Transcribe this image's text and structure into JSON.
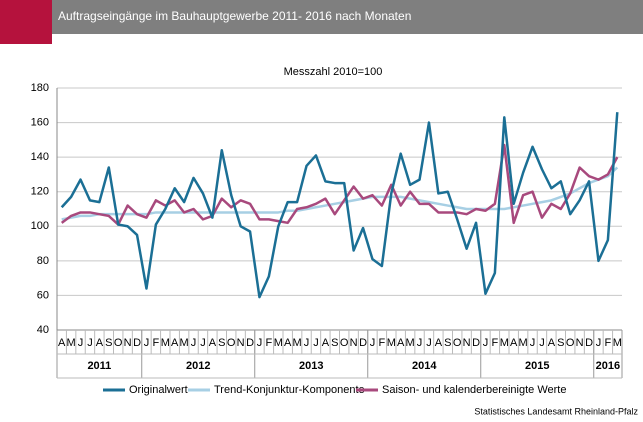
{
  "chart_data": {
    "type": "line",
    "title": "Auftragseingänge im Bauhauptgewerbe 2011- 2016 nach Monaten",
    "subtitle": "Messzahl 2010=100",
    "source": "Statistisches Landesamt Rheinland-Pfalz",
    "groups": [
      {
        "label": "2011",
        "categories": [
          "A",
          "M",
          "J",
          "J",
          "A",
          "S",
          "O",
          "N",
          "D"
        ]
      },
      {
        "label": "2012",
        "categories": [
          "J",
          "F",
          "M",
          "A",
          "M",
          "J",
          "J",
          "A",
          "S",
          "O",
          "N",
          "D"
        ]
      },
      {
        "label": "2013",
        "categories": [
          "J",
          "F",
          "M",
          "A",
          "M",
          "J",
          "J",
          "A",
          "S",
          "O",
          "N",
          "D"
        ]
      },
      {
        "label": "2014",
        "categories": [
          "J",
          "F",
          "M",
          "A",
          "M",
          "J",
          "J",
          "A",
          "S",
          "O",
          "N",
          "D"
        ]
      },
      {
        "label": "2015",
        "categories": [
          "J",
          "F",
          "M",
          "A",
          "M",
          "J",
          "J",
          "A",
          "S",
          "O",
          "N",
          "D"
        ]
      },
      {
        "label": "2016",
        "categories": [
          "J",
          "F",
          "M"
        ]
      }
    ],
    "series": [
      {
        "name": "Originalwert",
        "color": "#1b6f95",
        "values": [
          111,
          117,
          127,
          115,
          114,
          134,
          101,
          100,
          95,
          64,
          101,
          110,
          122,
          114,
          128,
          119,
          105,
          144,
          118,
          100,
          97,
          59,
          71,
          100,
          114,
          114,
          135,
          141,
          126,
          125,
          125,
          86,
          99,
          81,
          77,
          119,
          142,
          124,
          127,
          160,
          119,
          120,
          104,
          87,
          102,
          61,
          73,
          163,
          113,
          131,
          146,
          133,
          122,
          126,
          107,
          115,
          126,
          80,
          92,
          166
        ]
      },
      {
        "name": "Trend-Konjunktur-Komponente",
        "color": "#a7cfe4",
        "values": [
          104,
          105,
          106,
          106,
          107,
          107,
          107,
          107,
          107,
          107,
          108,
          108,
          108,
          108,
          108,
          108,
          108,
          108,
          108,
          108,
          108,
          108,
          108,
          108,
          109,
          109,
          110,
          111,
          112,
          113,
          114,
          115,
          116,
          117,
          117,
          117,
          117,
          116,
          115,
          114,
          113,
          112,
          111,
          110,
          110,
          110,
          110,
          110,
          111,
          112,
          113,
          114,
          115,
          117,
          119,
          122,
          125,
          127,
          129,
          134
        ]
      },
      {
        "name": "Saison- und kalenderbereinigte Werte",
        "color": "#a8497d",
        "values": [
          102,
          106,
          108,
          108,
          107,
          106,
          101,
          112,
          107,
          105,
          115,
          112,
          115,
          108,
          110,
          104,
          106,
          116,
          111,
          115,
          113,
          104,
          104,
          103,
          102,
          110,
          111,
          113,
          116,
          107,
          115,
          123,
          116,
          118,
          112,
          124,
          112,
          120,
          113,
          113,
          108,
          108,
          108,
          107,
          110,
          109,
          113,
          147,
          102,
          118,
          120,
          105,
          113,
          110,
          119,
          134,
          129,
          127,
          130,
          140
        ]
      }
    ],
    "ylim": [
      40,
      180
    ],
    "yticks": [
      40,
      60,
      80,
      100,
      120,
      140,
      160,
      180
    ],
    "grid": true
  }
}
